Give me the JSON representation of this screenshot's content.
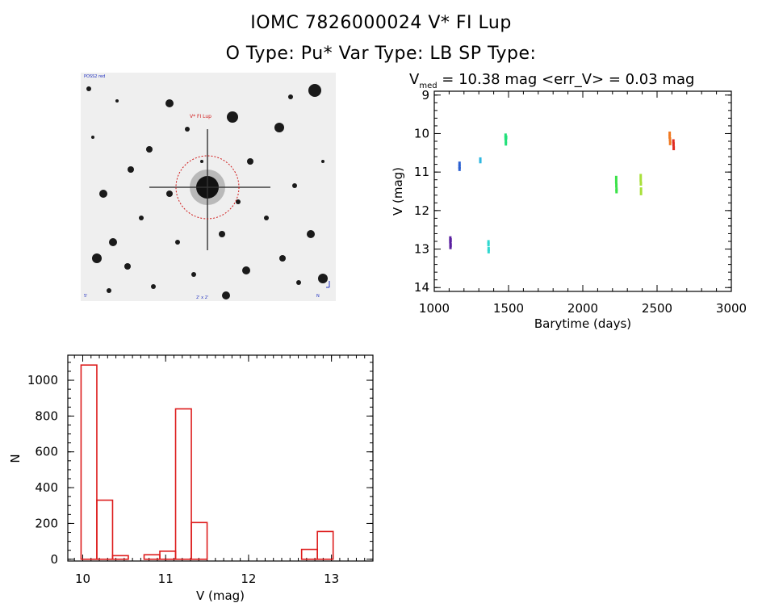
{
  "header": {
    "line1": "IOMC 7826000024   V* FI Lup",
    "line2": "O Type: Pu*  Var Type: LB  SP Type:",
    "vmed_prefix": "V",
    "vmed_sub": "med",
    "vmed_rest": " = 10.38 mag <err_V> = 0.03 mag"
  },
  "image_panel": {
    "target_label": "V* FI Lup",
    "corner_tl": "POSS2 red",
    "corner_bl": "5'",
    "corner_bc": "2' x 2'",
    "corner_br": "N"
  },
  "chart_data": [
    {
      "type": "scatter",
      "xlabel": "Barytime (days)",
      "ylabel": "V (mag)",
      "xlim": [
        1000,
        3000
      ],
      "ylim": [
        14.1,
        8.9
      ],
      "y_inverted": true,
      "xticks": [
        1000,
        1500,
        2000,
        2500,
        3000
      ],
      "yticks": [
        9,
        10,
        11,
        12,
        13,
        14
      ],
      "series": [
        {
          "color": "#5a1fa0",
          "points": [
            [
              1108,
              12.72
            ],
            [
              1108,
              12.8
            ],
            [
              1109,
              12.88
            ],
            [
              1109,
              12.95
            ],
            [
              1110,
              12.77
            ],
            [
              1110,
              12.9
            ]
          ]
        },
        {
          "color": "#2a5fd0",
          "points": [
            [
              1170,
              10.78
            ],
            [
              1170,
              10.86
            ],
            [
              1170,
              10.92
            ]
          ]
        },
        {
          "color": "#2fb7e0",
          "points": [
            [
              1310,
              10.67
            ],
            [
              1310,
              10.72
            ]
          ]
        },
        {
          "color": "#2fd8d0",
          "points": [
            [
              1365,
              12.82
            ],
            [
              1365,
              12.88
            ],
            [
              1366,
              13.0
            ],
            [
              1366,
              13.06
            ]
          ]
        },
        {
          "color": "#22e07a",
          "points": [
            [
              1480,
              10.05
            ],
            [
              1480,
              10.12
            ],
            [
              1482,
              10.2
            ],
            [
              1482,
              10.26
            ],
            [
              1484,
              10.1
            ]
          ]
        },
        {
          "color": "#3ce24a",
          "points": [
            [
              2225,
              11.15
            ],
            [
              2225,
              11.25
            ],
            [
              2226,
              11.35
            ],
            [
              2227,
              11.45
            ],
            [
              2227,
              11.5
            ]
          ]
        },
        {
          "color": "#a8e03a",
          "points": [
            [
              2390,
              11.1
            ],
            [
              2390,
              11.2
            ],
            [
              2391,
              11.3
            ],
            [
              2392,
              11.45
            ],
            [
              2392,
              11.55
            ]
          ]
        },
        {
          "color": "#f07820",
          "points": [
            [
              2585,
              10.0
            ],
            [
              2585,
              10.08
            ],
            [
              2587,
              10.15
            ],
            [
              2588,
              10.25
            ]
          ]
        },
        {
          "color": "#e02a20",
          "points": [
            [
              2610,
              10.2
            ],
            [
              2611,
              10.28
            ],
            [
              2612,
              10.38
            ]
          ]
        }
      ]
    },
    {
      "type": "bar",
      "xlabel": "V (mag)",
      "ylabel": "N",
      "xlim": [
        9.82,
        13.5
      ],
      "ylim": [
        -10,
        1140
      ],
      "xticks": [
        10,
        11,
        12,
        13
      ],
      "yticks": [
        0,
        200,
        400,
        600,
        800,
        1000
      ],
      "color": "#dd1c1c",
      "bin_width": 0.19,
      "bins": [
        {
          "left": 9.98,
          "value": 1085
        },
        {
          "left": 10.17,
          "value": 330
        },
        {
          "left": 10.36,
          "value": 20
        },
        {
          "left": 10.55,
          "value": 0
        },
        {
          "left": 10.74,
          "value": 25
        },
        {
          "left": 10.93,
          "value": 45
        },
        {
          "left": 11.12,
          "value": 840
        },
        {
          "left": 11.31,
          "value": 205
        },
        {
          "left": 11.5,
          "value": 0
        },
        {
          "left": 11.69,
          "value": 0
        },
        {
          "left": 11.88,
          "value": 0
        },
        {
          "left": 12.07,
          "value": 0
        },
        {
          "left": 12.26,
          "value": 0
        },
        {
          "left": 12.45,
          "value": 0
        },
        {
          "left": 12.64,
          "value": 55
        },
        {
          "left": 12.83,
          "value": 155
        },
        {
          "left": 13.02,
          "value": 0
        }
      ]
    }
  ]
}
